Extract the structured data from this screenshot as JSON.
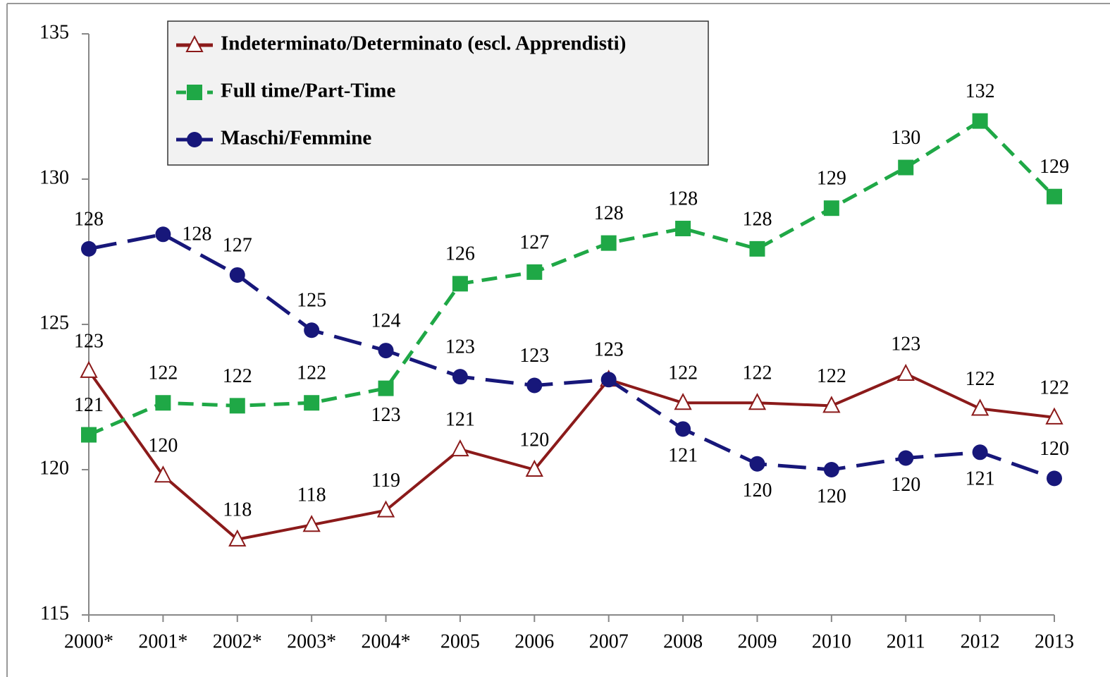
{
  "chart_data": {
    "type": "line",
    "categories": [
      "2000*",
      "2001*",
      "2002*",
      "2003*",
      "2004*",
      "2005",
      "2006",
      "2007",
      "2008",
      "2009",
      "2010",
      "2011",
      "2012",
      "2013"
    ],
    "series": [
      {
        "name": "Indeterminato/Determinato (escl. Apprendisti)",
        "color": "#8b1a1a",
        "marker": "triangle",
        "line_style": "solid",
        "values": [
          123.4,
          119.8,
          117.6,
          118.1,
          118.6,
          120.7,
          120.0,
          123.1,
          122.3,
          122.3,
          122.2,
          123.3,
          122.1,
          121.8
        ],
        "value_labels": [
          "123",
          "120",
          "118",
          "118",
          "119",
          "121",
          "120",
          "123",
          "122",
          "122",
          "122",
          "123",
          "122",
          "122"
        ]
      },
      {
        "name": "Full time/Part-Time",
        "color": "#1fa846",
        "marker": "square",
        "line_style": "dashed",
        "values": [
          121.2,
          122.3,
          122.2,
          122.3,
          122.8,
          126.4,
          126.8,
          127.8,
          128.3,
          127.6,
          129.0,
          130.4,
          132.0,
          129.4
        ],
        "value_labels": [
          "121",
          "122",
          "122",
          "122",
          "123",
          "126",
          "127",
          "128",
          "128",
          "128",
          "129",
          "130",
          "132",
          "129"
        ]
      },
      {
        "name": "Maschi/Femmine",
        "color": "#17177a",
        "marker": "circle",
        "line_style": "longdash",
        "values": [
          127.6,
          128.1,
          126.7,
          124.8,
          124.1,
          123.2,
          122.9,
          123.1,
          121.4,
          120.2,
          120.0,
          120.4,
          120.6,
          119.7
        ],
        "value_labels": [
          "128",
          "128",
          "127",
          "125",
          "124",
          "123",
          "123",
          "123",
          "121",
          "120",
          "120",
          "120",
          "121",
          "120"
        ]
      }
    ],
    "ylim": [
      115,
      135
    ],
    "yticks": [
      115,
      120,
      125,
      130,
      135
    ],
    "grid": false,
    "legend": "top-left"
  }
}
